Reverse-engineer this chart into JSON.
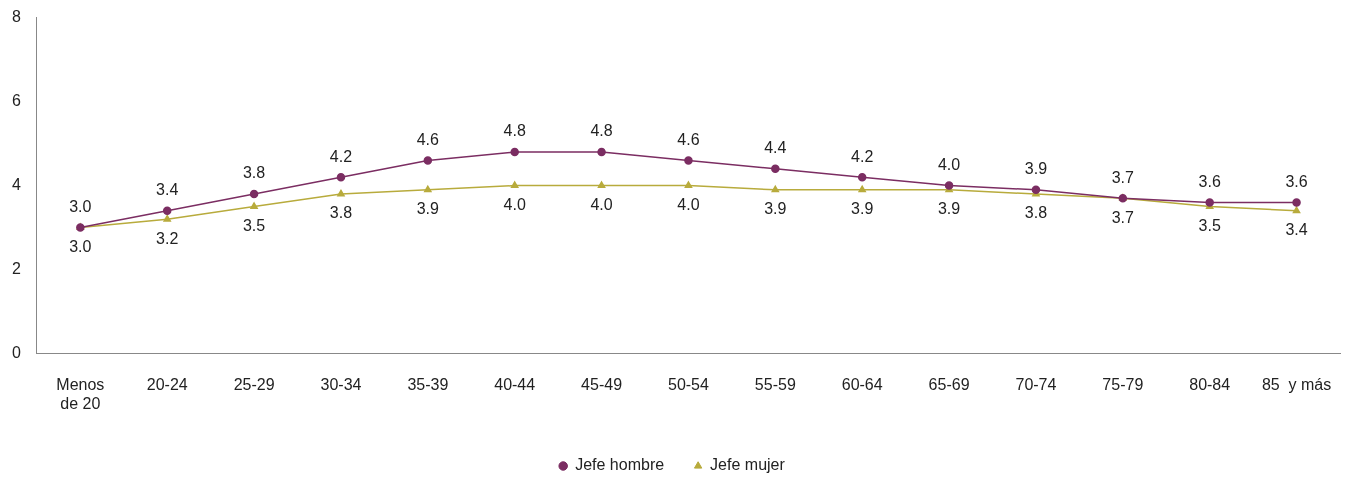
{
  "chart_data": {
    "type": "line",
    "categories": [
      "Menos de 20",
      "20-24",
      "25-29",
      "30-34",
      "35-39",
      "40-44",
      "45-49",
      "50-54",
      "55-59",
      "60-64",
      "65-69",
      "70-74",
      "75-79",
      "80-84",
      "85  y más"
    ],
    "series": [
      {
        "name": "Jefe hombre",
        "color": "#7b2d62",
        "marker": "circle",
        "values": [
          3.0,
          3.4,
          3.8,
          4.2,
          4.6,
          4.8,
          4.8,
          4.6,
          4.4,
          4.2,
          4.0,
          3.9,
          3.7,
          3.6,
          3.6
        ],
        "value_labels": [
          "3.0",
          "3.4",
          "3.8",
          "4.2",
          "4.6",
          "4.8",
          "4.8",
          "4.6",
          "4.4",
          "4.2",
          "4.0",
          "3.9",
          "3.7",
          "3.6",
          "3.6"
        ]
      },
      {
        "name": "Jefe mujer",
        "color": "#b8ab3c",
        "marker": "triangle",
        "values": [
          3.0,
          3.2,
          3.5,
          3.8,
          3.9,
          4.0,
          4.0,
          4.0,
          3.9,
          3.9,
          3.9,
          3.8,
          3.7,
          3.5,
          3.4
        ],
        "value_labels": [
          "3.0",
          "3.2",
          "3.5",
          "3.8",
          "3.9",
          "4.0",
          "4.0",
          "4.0",
          "3.9",
          "3.9",
          "3.9",
          "3.8",
          "3.7",
          "3.5",
          "3.4"
        ]
      }
    ],
    "ylim": [
      0,
      8
    ],
    "yticks": [
      0,
      2,
      4,
      6,
      8
    ],
    "grid": false,
    "legend": "bottom"
  }
}
